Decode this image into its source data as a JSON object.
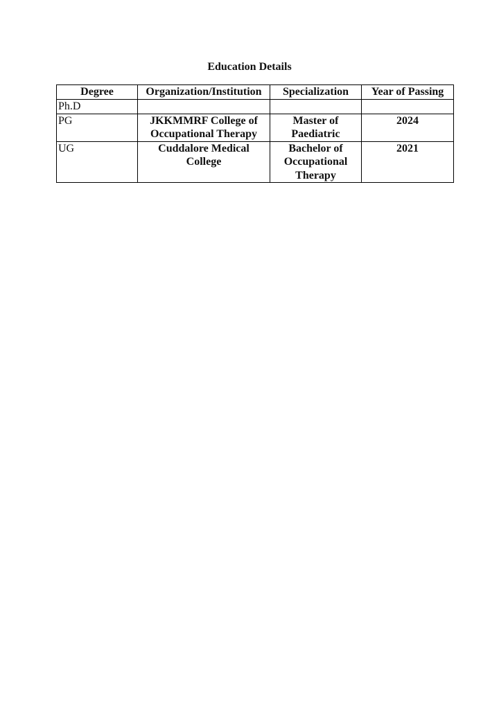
{
  "title": "Education Details",
  "table": {
    "headers": [
      "Degree",
      "Organization/Institution",
      "Specialization",
      "Year of Passing"
    ],
    "rows": [
      {
        "degree": "Ph.D",
        "institution": "",
        "specialization": "",
        "year": ""
      },
      {
        "degree": "PG",
        "institution": "JKKMMRF College of Occupational Therapy",
        "specialization": "Master of Paediatric",
        "year": "2024"
      },
      {
        "degree": "UG",
        "institution": "Cuddalore Medical College",
        "specialization": "Bachelor of Occupational Therapy",
        "year": "2021"
      }
    ]
  }
}
